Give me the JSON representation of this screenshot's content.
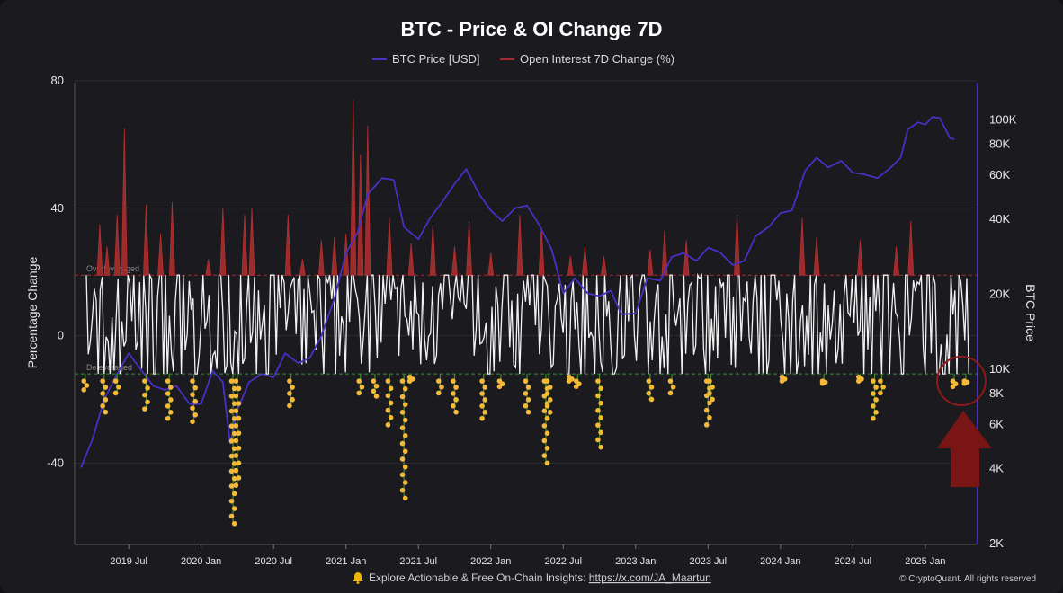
{
  "chart_data": {
    "type": "line",
    "title": "BTC - Price & OI Change 7D",
    "legend": [
      {
        "name": "BTC Price [USD]",
        "color": "#4a2fc2"
      },
      {
        "name": "Open Interest 7D Change (%)",
        "color": "#a52a2a"
      }
    ],
    "ylabel_left": "Percentage Change",
    "ylabel_right": "BTC Price",
    "ylim_left": [
      -65,
      80
    ],
    "yticks_left": [
      80,
      40,
      0,
      -40
    ],
    "ylim_right_log": [
      2000,
      140000
    ],
    "yticks_right": [
      {
        "v": 100000,
        "label": "100K"
      },
      {
        "v": 80000,
        "label": "80K"
      },
      {
        "v": 60000,
        "label": "60K"
      },
      {
        "v": 40000,
        "label": "40K"
      },
      {
        "v": 20000,
        "label": "20K"
      },
      {
        "v": 10000,
        "label": "10K"
      },
      {
        "v": 8000,
        "label": "8K"
      },
      {
        "v": 6000,
        "label": "6K"
      },
      {
        "v": 4000,
        "label": "4K"
      },
      {
        "v": 2000,
        "label": "2K"
      }
    ],
    "xlim": [
      2019.17,
      2025.33
    ],
    "xticks": [
      {
        "x": 2019.5,
        "label": "2019 Jul"
      },
      {
        "x": 2020.0,
        "label": "2020 Jan"
      },
      {
        "x": 2020.5,
        "label": "2020 Jul"
      },
      {
        "x": 2021.0,
        "label": "2021 Jan"
      },
      {
        "x": 2021.5,
        "label": "2021 Jul"
      },
      {
        "x": 2022.0,
        "label": "2022 Jan"
      },
      {
        "x": 2022.5,
        "label": "2022 Jul"
      },
      {
        "x": 2023.0,
        "label": "2023 Jan"
      },
      {
        "x": 2023.5,
        "label": "2023 Jul"
      },
      {
        "x": 2024.0,
        "label": "2024 Jan"
      },
      {
        "x": 2024.5,
        "label": "2024 Jul"
      },
      {
        "x": 2025.0,
        "label": "2025 Jan"
      }
    ],
    "thresholds": [
      {
        "name": "Overleveraged",
        "value": 19,
        "color": "#a52a2a"
      },
      {
        "name": "Deleveraged",
        "value": -12,
        "color": "#3a8a3a"
      }
    ],
    "btc_price": [
      [
        2019.17,
        4000
      ],
      [
        2019.25,
        5200
      ],
      [
        2019.33,
        7500
      ],
      [
        2019.42,
        9500
      ],
      [
        2019.5,
        11500
      ],
      [
        2019.55,
        10500
      ],
      [
        2019.67,
        8500
      ],
      [
        2019.75,
        8200
      ],
      [
        2019.83,
        8500
      ],
      [
        2019.92,
        7200
      ],
      [
        2020.0,
        7200
      ],
      [
        2020.08,
        9800
      ],
      [
        2020.15,
        8800
      ],
      [
        2020.2,
        5000
      ],
      [
        2020.25,
        6800
      ],
      [
        2020.33,
        8800
      ],
      [
        2020.42,
        9500
      ],
      [
        2020.5,
        9200
      ],
      [
        2020.58,
        11500
      ],
      [
        2020.67,
        10500
      ],
      [
        2020.75,
        11000
      ],
      [
        2020.83,
        13500
      ],
      [
        2020.92,
        19000
      ],
      [
        2021.0,
        29000
      ],
      [
        2021.08,
        35000
      ],
      [
        2021.15,
        50000
      ],
      [
        2021.25,
        58000
      ],
      [
        2021.33,
        57000
      ],
      [
        2021.4,
        37000
      ],
      [
        2021.5,
        33000
      ],
      [
        2021.58,
        40000
      ],
      [
        2021.67,
        47000
      ],
      [
        2021.75,
        55000
      ],
      [
        2021.83,
        63000
      ],
      [
        2021.92,
        50000
      ],
      [
        2022.0,
        43000
      ],
      [
        2022.08,
        39000
      ],
      [
        2022.17,
        44000
      ],
      [
        2022.25,
        45000
      ],
      [
        2022.33,
        38000
      ],
      [
        2022.42,
        30000
      ],
      [
        2022.5,
        20000
      ],
      [
        2022.58,
        23000
      ],
      [
        2022.67,
        20000
      ],
      [
        2022.75,
        19500
      ],
      [
        2022.83,
        20500
      ],
      [
        2022.9,
        16500
      ],
      [
        2023.0,
        16600
      ],
      [
        2023.08,
        23000
      ],
      [
        2023.17,
        22500
      ],
      [
        2023.25,
        28000
      ],
      [
        2023.33,
        29000
      ],
      [
        2023.42,
        27000
      ],
      [
        2023.5,
        30500
      ],
      [
        2023.58,
        29300
      ],
      [
        2023.67,
        26000
      ],
      [
        2023.75,
        27000
      ],
      [
        2023.83,
        34000
      ],
      [
        2023.92,
        37000
      ],
      [
        2024.0,
        42000
      ],
      [
        2024.08,
        43000
      ],
      [
        2024.17,
        62000
      ],
      [
        2024.25,
        70000
      ],
      [
        2024.33,
        64000
      ],
      [
        2024.42,
        68000
      ],
      [
        2024.5,
        61000
      ],
      [
        2024.58,
        60000
      ],
      [
        2024.67,
        58000
      ],
      [
        2024.75,
        63000
      ],
      [
        2024.83,
        70000
      ],
      [
        2024.88,
        91000
      ],
      [
        2024.95,
        97000
      ],
      [
        2025.0,
        95000
      ],
      [
        2025.05,
        102000
      ],
      [
        2025.1,
        101000
      ],
      [
        2025.17,
        84000
      ],
      [
        2025.2,
        83000
      ]
    ],
    "oi_spikes": [
      [
        2019.3,
        35
      ],
      [
        2019.35,
        28
      ],
      [
        2019.42,
        38
      ],
      [
        2019.47,
        65
      ],
      [
        2019.62,
        41
      ],
      [
        2019.72,
        32
      ],
      [
        2019.8,
        42
      ],
      [
        2020.05,
        24
      ],
      [
        2020.15,
        40
      ],
      [
        2020.3,
        38
      ],
      [
        2020.35,
        40
      ],
      [
        2020.6,
        38
      ],
      [
        2020.7,
        24
      ],
      [
        2020.83,
        30
      ],
      [
        2020.92,
        31
      ],
      [
        2021.0,
        32
      ],
      [
        2021.05,
        74
      ],
      [
        2021.1,
        57
      ],
      [
        2021.15,
        66
      ],
      [
        2021.3,
        37
      ],
      [
        2021.45,
        29
      ],
      [
        2021.6,
        35
      ],
      [
        2021.75,
        28
      ],
      [
        2021.85,
        36
      ],
      [
        2022.0,
        26
      ],
      [
        2022.2,
        38
      ],
      [
        2022.35,
        34
      ],
      [
        2022.55,
        25
      ],
      [
        2022.65,
        28
      ],
      [
        2022.78,
        25
      ],
      [
        2023.1,
        27
      ],
      [
        2023.2,
        33
      ],
      [
        2023.35,
        30
      ],
      [
        2023.7,
        38
      ],
      [
        2024.15,
        37
      ],
      [
        2024.25,
        31
      ],
      [
        2024.55,
        30
      ],
      [
        2024.8,
        28
      ],
      [
        2024.9,
        36
      ]
    ],
    "deleverage_clusters": [
      [
        2019.2,
        -17
      ],
      [
        2019.33,
        -24
      ],
      [
        2019.42,
        -18
      ],
      [
        2019.62,
        -23
      ],
      [
        2019.78,
        -26
      ],
      [
        2019.95,
        -27
      ],
      [
        2020.22,
        -59
      ],
      [
        2020.25,
        -47
      ],
      [
        2020.62,
        -22
      ],
      [
        2021.1,
        -18
      ],
      [
        2021.2,
        -19
      ],
      [
        2021.3,
        -28
      ],
      [
        2021.4,
        -51
      ],
      [
        2021.45,
        -13
      ],
      [
        2021.65,
        -18
      ],
      [
        2021.75,
        -24
      ],
      [
        2021.95,
        -26
      ],
      [
        2022.07,
        -16
      ],
      [
        2022.25,
        -24
      ],
      [
        2022.38,
        -40
      ],
      [
        2022.4,
        -26
      ],
      [
        2022.55,
        -13
      ],
      [
        2022.6,
        -16
      ],
      [
        2022.75,
        -35
      ],
      [
        2023.1,
        -20
      ],
      [
        2023.25,
        -18
      ],
      [
        2023.5,
        -28
      ],
      [
        2023.52,
        -20
      ],
      [
        2024.02,
        -13
      ],
      [
        2024.3,
        -15
      ],
      [
        2024.55,
        -13
      ],
      [
        2024.65,
        -26
      ],
      [
        2024.7,
        -18
      ],
      [
        2025.2,
        -16
      ],
      [
        2025.28,
        -15
      ]
    ]
  },
  "footer": {
    "bell_icon": "bell-icon",
    "text": "Explore Actionable & Free On-Chain Insights: ",
    "link": "https://x.com/JA_Maartun",
    "copyright": "© CryptoQuant. All rights reserved"
  }
}
